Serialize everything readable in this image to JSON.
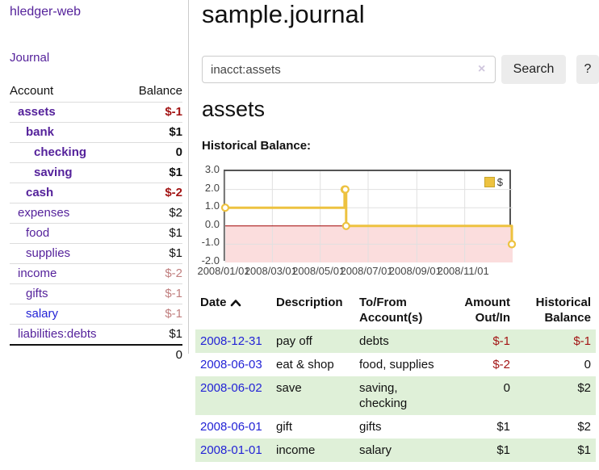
{
  "colors": {
    "link_purple": "#55229b",
    "link_blue": "#2323d6",
    "negative_strong": "#a31515",
    "negative_light": "#c17f7f",
    "row_green": "#dff0d8",
    "chart_line_gold": "#edc240",
    "chart_negative_fill": "#fbdddd",
    "chart_zero_line": "#a00000"
  },
  "app": {
    "brand": "hledger-web"
  },
  "sidebar": {
    "journal_link": "Journal",
    "accounts_table": {
      "account_header": "Account",
      "balance_header": "Balance",
      "rows": [
        {
          "account": "assets",
          "balance": "$-1",
          "level": 1,
          "bold": true,
          "balance_tone": "neg-strong",
          "link_tone": "purple"
        },
        {
          "account": "bank",
          "balance": "$1",
          "level": 2,
          "bold": true,
          "balance_tone": "normal",
          "link_tone": "purple"
        },
        {
          "account": "checking",
          "balance": "0",
          "level": 3,
          "bold": true,
          "balance_tone": "normal",
          "link_tone": "purple"
        },
        {
          "account": "saving",
          "balance": "$1",
          "level": 3,
          "bold": true,
          "balance_tone": "normal",
          "link_tone": "purple"
        },
        {
          "account": "cash",
          "balance": "$-2",
          "level": 2,
          "bold": true,
          "balance_tone": "neg-strong",
          "link_tone": "purple"
        },
        {
          "account": "expenses",
          "balance": "$2",
          "level": 1,
          "bold": false,
          "balance_tone": "normal",
          "link_tone": "purple"
        },
        {
          "account": "food",
          "balance": "$1",
          "level": 2,
          "bold": false,
          "balance_tone": "normal",
          "link_tone": "purple"
        },
        {
          "account": "supplies",
          "balance": "$1",
          "level": 2,
          "bold": false,
          "balance_tone": "normal",
          "link_tone": "purple"
        },
        {
          "account": "income",
          "balance": "$-2",
          "level": 1,
          "bold": false,
          "balance_tone": "neg-light",
          "link_tone": "purple"
        },
        {
          "account": "gifts",
          "balance": "$-1",
          "level": 2,
          "bold": false,
          "balance_tone": "neg-light",
          "link_tone": "purple"
        },
        {
          "account": "salary",
          "balance": "$-1",
          "level": 2,
          "bold": false,
          "balance_tone": "neg-light",
          "link_tone": "blue"
        },
        {
          "account": "liabilities:debts",
          "balance": "$1",
          "level": 1,
          "bold": false,
          "balance_tone": "normal",
          "link_tone": "purple"
        }
      ],
      "total": "0"
    }
  },
  "main": {
    "title": "sample.journal",
    "search": {
      "value": "inacct:assets",
      "clear_icon": "×",
      "search_button": "Search",
      "help_button": "?"
    },
    "account_heading": "assets",
    "chart_title": "Historical Balance:"
  },
  "chart_data": {
    "type": "line",
    "step": true,
    "title": "Historical Balance",
    "legend": {
      "label": "$",
      "position": "top-right"
    },
    "x_tick_labels": [
      "2008/01/01",
      "2008/03/01",
      "2008/05/01",
      "2008/07/01",
      "2008/09/01",
      "2008/11/01"
    ],
    "y_tick_labels": [
      "3.0",
      "2.0",
      "1.0",
      "0.0",
      "-1.0",
      "-2.0"
    ],
    "ylim": [
      -2,
      3
    ],
    "xlim": [
      "2008-01-01",
      "2008-12-31"
    ],
    "grid": true,
    "negative_region_shaded": true,
    "series": [
      {
        "name": "$",
        "color": "#edc240",
        "points": [
          {
            "x": "2008-01-01",
            "y": 1
          },
          {
            "x": "2008-06-01",
            "y": 2
          },
          {
            "x": "2008-06-02",
            "y": 2
          },
          {
            "x": "2008-06-03",
            "y": 0
          },
          {
            "x": "2008-12-31",
            "y": -1
          }
        ]
      }
    ]
  },
  "register": {
    "columns": [
      "Date",
      "Description",
      "To/From Account(s)",
      "Amount Out/In",
      "Historical Balance"
    ],
    "sort": {
      "column": "Date",
      "direction": "asc"
    },
    "rows": [
      {
        "date": "2008-12-31",
        "description": "pay off",
        "accounts": "debts",
        "amount": "$-1",
        "balance": "$-1",
        "amount_negative": true,
        "balance_negative": true
      },
      {
        "date": "2008-06-03",
        "description": "eat & shop",
        "accounts": "food, supplies",
        "amount": "$-2",
        "balance": "0",
        "amount_negative": true,
        "balance_negative": false
      },
      {
        "date": "2008-06-02",
        "description": "save",
        "accounts": "saving, checking",
        "amount": "0",
        "balance": "$2",
        "amount_negative": false,
        "balance_negative": false
      },
      {
        "date": "2008-06-01",
        "description": "gift",
        "accounts": "gifts",
        "amount": "$1",
        "balance": "$2",
        "amount_negative": false,
        "balance_negative": false
      },
      {
        "date": "2008-01-01",
        "description": "income",
        "accounts": "salary",
        "amount": "$1",
        "balance": "$1",
        "amount_negative": false,
        "balance_negative": false
      }
    ]
  }
}
